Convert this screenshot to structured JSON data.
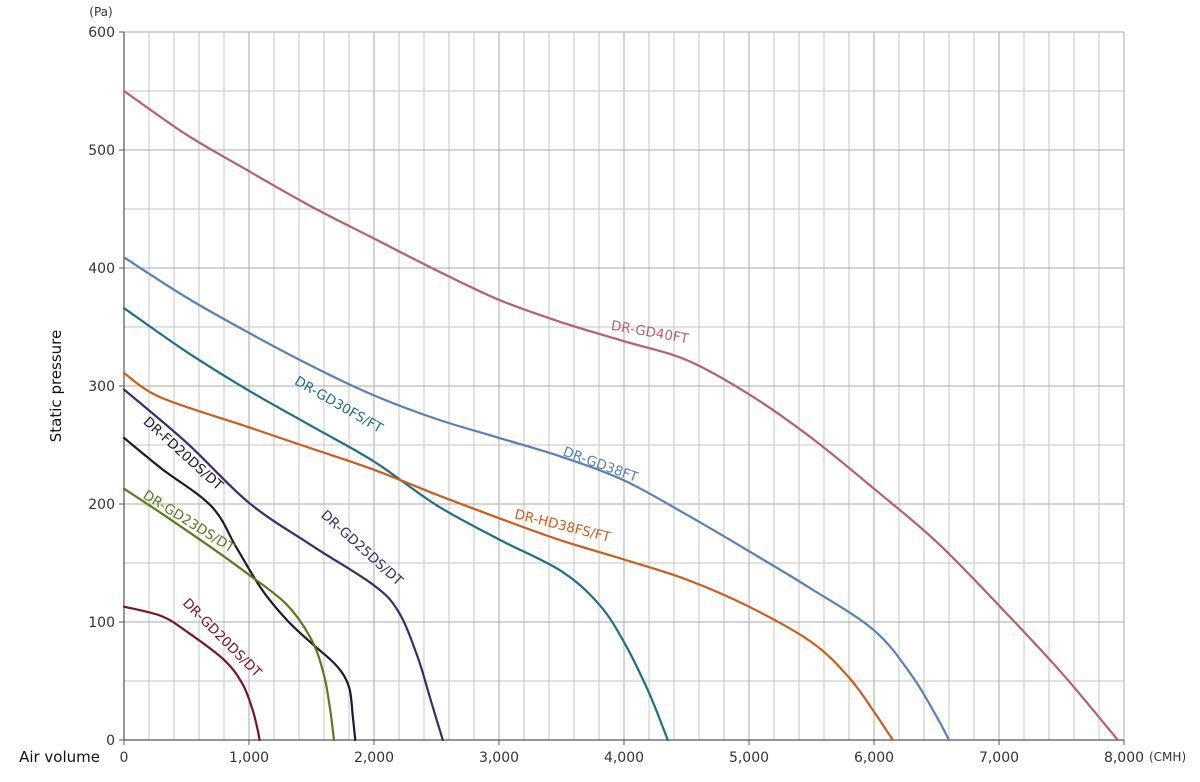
{
  "chart_data": {
    "type": "line",
    "title": "",
    "xlabel": "Air volume",
    "ylabel": "Static pressure",
    "x_unit": "(CMH)",
    "y_unit": "(Pa)",
    "xlim": [
      0,
      8000
    ],
    "ylim": [
      0,
      600
    ],
    "x_ticks": [
      0,
      1000,
      2000,
      3000,
      4000,
      5000,
      6000,
      7000,
      8000
    ],
    "x_tick_labels": [
      "0",
      "1,000",
      "2,000",
      "3,000",
      "4,000",
      "5,000",
      "6,000",
      "7,000",
      "8,000"
    ],
    "y_ticks": [
      0,
      100,
      200,
      300,
      400,
      500,
      600
    ],
    "y_tick_labels": [
      "0",
      "100",
      "200",
      "300",
      "400",
      "500",
      "600"
    ],
    "grid": true,
    "legend": "none (labels on curves)",
    "series": [
      {
        "name": "DR-GD40FT",
        "color": "#b5606a",
        "points": [
          [
            0,
            550
          ],
          [
            500,
            513
          ],
          [
            1000,
            482
          ],
          [
            1500,
            452
          ],
          [
            2000,
            425
          ],
          [
            2500,
            398
          ],
          [
            3000,
            373
          ],
          [
            3500,
            354
          ],
          [
            4000,
            338
          ],
          [
            4500,
            322
          ],
          [
            5000,
            293
          ],
          [
            5500,
            256
          ],
          [
            6000,
            213
          ],
          [
            6500,
            168
          ],
          [
            7000,
            114
          ],
          [
            7500,
            57
          ],
          [
            7950,
            0
          ]
        ]
      },
      {
        "name": "DR-GD38FT",
        "color": "#5a7fb5",
        "points": [
          [
            0,
            409
          ],
          [
            500,
            375
          ],
          [
            1000,
            345
          ],
          [
            1500,
            317
          ],
          [
            2000,
            292
          ],
          [
            2500,
            272
          ],
          [
            3000,
            256
          ],
          [
            3500,
            240
          ],
          [
            4000,
            220
          ],
          [
            4500,
            191
          ],
          [
            5000,
            160
          ],
          [
            5500,
            128
          ],
          [
            6000,
            93
          ],
          [
            6300,
            55
          ],
          [
            6500,
            20
          ],
          [
            6600,
            0
          ]
        ]
      },
      {
        "name": "DR-GD30FS/FT",
        "color": "#1f6e86",
        "points": [
          [
            0,
            366
          ],
          [
            500,
            329
          ],
          [
            1000,
            296
          ],
          [
            1500,
            266
          ],
          [
            2000,
            236
          ],
          [
            2500,
            199
          ],
          [
            3000,
            170
          ],
          [
            3500,
            143
          ],
          [
            3800,
            115
          ],
          [
            4000,
            83
          ],
          [
            4200,
            40
          ],
          [
            4350,
            0
          ]
        ]
      },
      {
        "name": "DR-HD38FS/FT",
        "color": "#cc5c1a",
        "points": [
          [
            0,
            311
          ],
          [
            300,
            290
          ],
          [
            1000,
            265
          ],
          [
            1500,
            247
          ],
          [
            2000,
            229
          ],
          [
            2500,
            208
          ],
          [
            3000,
            188
          ],
          [
            3500,
            169
          ],
          [
            4000,
            153
          ],
          [
            4500,
            136
          ],
          [
            5000,
            113
          ],
          [
            5500,
            83
          ],
          [
            5800,
            53
          ],
          [
            6000,
            24
          ],
          [
            6150,
            0
          ]
        ]
      },
      {
        "name": "DR-GD25DS/DT",
        "color": "#3b2a6e",
        "points": [
          [
            0,
            297
          ],
          [
            500,
            252
          ],
          [
            1000,
            201
          ],
          [
            1500,
            165
          ],
          [
            2000,
            131
          ],
          [
            2200,
            108
          ],
          [
            2350,
            70
          ],
          [
            2450,
            35
          ],
          [
            2550,
            0
          ]
        ]
      },
      {
        "name": "DR-FD20DS/DT",
        "color": "#1a1a2a",
        "points": [
          [
            0,
            256
          ],
          [
            300,
            230
          ],
          [
            700,
            198
          ],
          [
            900,
            163
          ],
          [
            1100,
            128
          ],
          [
            1300,
            102
          ],
          [
            1500,
            82
          ],
          [
            1700,
            63
          ],
          [
            1800,
            45
          ],
          [
            1830,
            20
          ],
          [
            1850,
            0
          ]
        ]
      },
      {
        "name": "DR-GD23DS/DT",
        "color": "#5a7a1e",
        "points": [
          [
            0,
            213
          ],
          [
            300,
            192
          ],
          [
            700,
            163
          ],
          [
            1000,
            140
          ],
          [
            1300,
            115
          ],
          [
            1500,
            85
          ],
          [
            1600,
            55
          ],
          [
            1650,
            25
          ],
          [
            1680,
            0
          ]
        ]
      },
      {
        "name": "DR-GD20DS/DT",
        "color": "#7a1424",
        "points": [
          [
            0,
            113
          ],
          [
            300,
            105
          ],
          [
            500,
            92
          ],
          [
            800,
            68
          ],
          [
            950,
            47
          ],
          [
            1030,
            25
          ],
          [
            1070,
            8
          ],
          [
            1085,
            0
          ]
        ]
      }
    ],
    "annotations": [
      {
        "text": "DR-GD40FT",
        "x": 4200,
        "y": 342,
        "angle": 10,
        "color": "#b5606a"
      },
      {
        "text": "DR-GD38FT",
        "x": 3800,
        "y": 230,
        "angle": 20,
        "color": "#5a7fb5"
      },
      {
        "text": "DR-GD30FS/FT",
        "x": 1700,
        "y": 281,
        "angle": 30,
        "color": "#1f6e86"
      },
      {
        "text": "DR-HD38FS/FT",
        "x": 3500,
        "y": 178,
        "angle": 14,
        "color": "#cc5c1a"
      },
      {
        "text": "DR-GD25DS/DT",
        "x": 1880,
        "y": 160,
        "angle": 42,
        "color": "#3b2a6e"
      },
      {
        "text": "DR-FD20DS/DT",
        "x": 450,
        "y": 240,
        "angle": 42,
        "color": "#1a1a2a"
      },
      {
        "text": "DR-GD23DS/DT",
        "x": 500,
        "y": 182,
        "angle": 32,
        "color": "#5a7a1e"
      },
      {
        "text": "DR-GD20DS/DT",
        "x": 760,
        "y": 84,
        "angle": 45,
        "color": "#7a1424"
      }
    ]
  }
}
